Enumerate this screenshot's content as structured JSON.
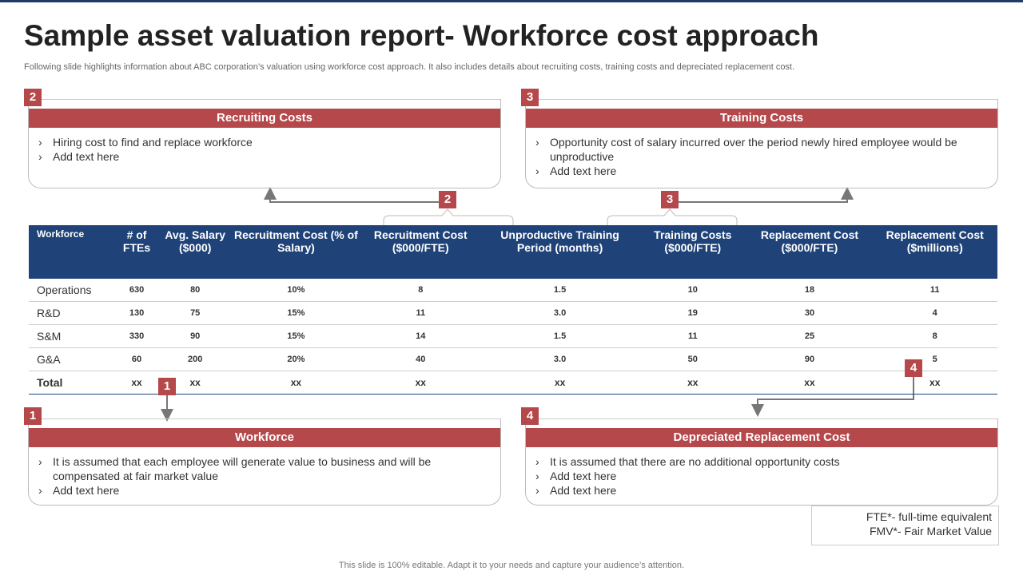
{
  "header": {
    "title": "Sample asset valuation report- Workforce cost approach",
    "subtitle": "Following slide highlights information about ABC corporation’s valuation using workforce cost approach. It also includes details about recruiting costs, training costs and depreciated replacement cost."
  },
  "boxes": [
    {
      "number": "2",
      "heading": "Recruiting Costs",
      "bullets": [
        "Hiring cost to find and replace workforce",
        "Add text here"
      ]
    },
    {
      "number": "3",
      "heading": "Training Costs",
      "bullets": [
        "Opportunity cost of salary incurred over the period newly hired employee would be unproductive",
        "Add text here"
      ]
    },
    {
      "number": "1",
      "heading": "Workforce",
      "bullets": [
        "It is assumed that each employee will generate value to business and will be compensated at fair market value",
        "Add text here"
      ]
    },
    {
      "number": "4",
      "heading": "Depreciated Replacement Cost",
      "bullets": [
        "It is assumed that there are no additional opportunity costs",
        "Add text here",
        "Add text here"
      ]
    }
  ],
  "connectors": [
    "2",
    "3",
    "1",
    "4"
  ],
  "table": {
    "headers": [
      "Workforce",
      "# of FTEs",
      "Avg. Salary ($000)",
      "Recruitment Cost (% of Salary)",
      "Recruitment Cost ($000/FTE)",
      "Unproductive Training Period (months)",
      "Training Costs ($000/FTE)",
      "Replacement Cost ($000/FTE)",
      "Replacement Cost ($millions)"
    ],
    "rows": [
      [
        "Operations",
        "630",
        "80",
        "10%",
        "8",
        "1.5",
        "10",
        "18",
        "11"
      ],
      [
        "R&D",
        "130",
        "75",
        "15%",
        "11",
        "3.0",
        "19",
        "30",
        "4"
      ],
      [
        "S&M",
        "330",
        "90",
        "15%",
        "14",
        "1.5",
        "11",
        "25",
        "8"
      ],
      [
        "G&A",
        "60",
        "200",
        "20%",
        "40",
        "3.0",
        "50",
        "90",
        "5"
      ],
      [
        "Total",
        "xx",
        "xx",
        "xx",
        "xx",
        "xx",
        "xx",
        "xx",
        "xx"
      ]
    ]
  },
  "notes": [
    "FTE*- full-time equivalent",
    "FMV*- Fair Market Value"
  ],
  "footer": "This slide is 100% editable. Adapt it to your needs and capture your audience’s attention."
}
